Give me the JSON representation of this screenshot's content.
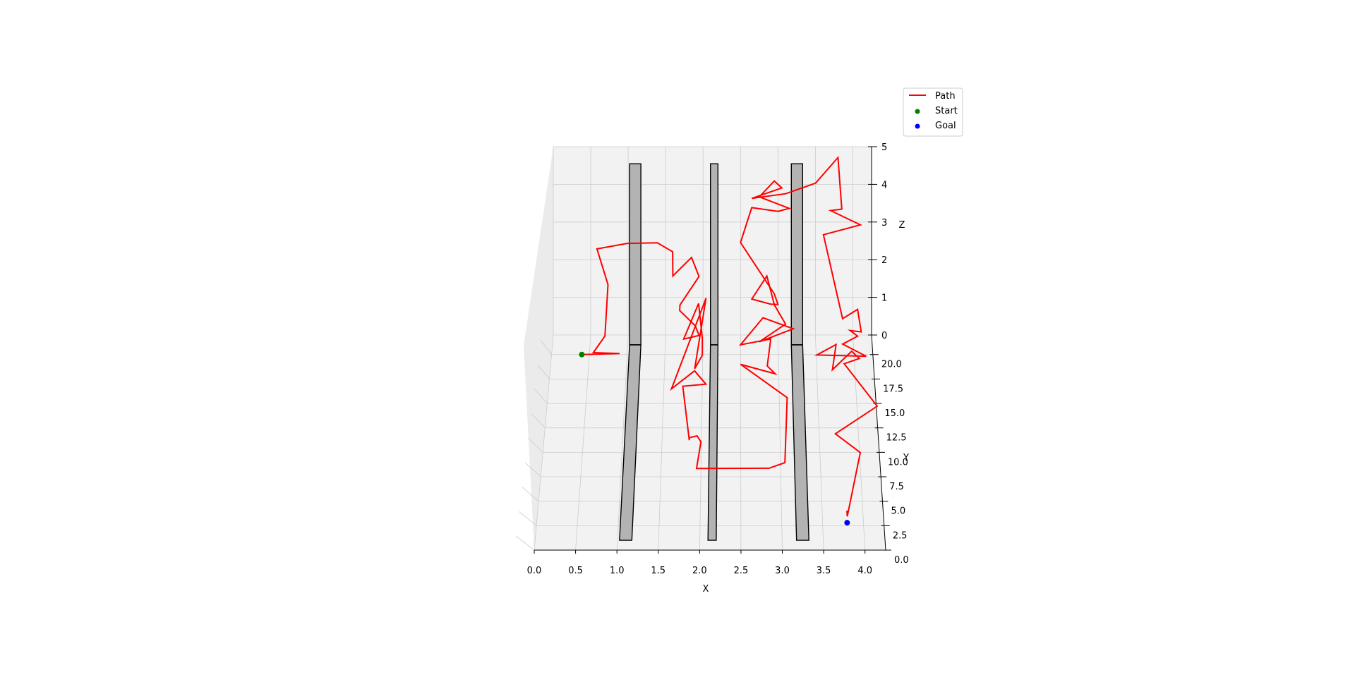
{
  "chart_data": {
    "type": "line",
    "projection": "3d",
    "xlabel": "X",
    "ylabel": "Y",
    "zlabel": "Z",
    "xlim": [
      0.0,
      4.25
    ],
    "ylim": [
      0.0,
      22.0
    ],
    "zlim": [
      0.0,
      5.0
    ],
    "grid": true,
    "legend_position": "top-right",
    "x_ticks": [
      "0.0",
      "0.5",
      "1.0",
      "1.5",
      "2.0",
      "2.5",
      "3.0",
      "3.5",
      "4.0"
    ],
    "y_ticks": [
      "0.0",
      "2.5",
      "5.0",
      "7.5",
      "10.0",
      "12.5",
      "15.0",
      "17.5",
      "20.0"
    ],
    "z_ticks": [
      "0",
      "1",
      "2",
      "3",
      "4",
      "5"
    ],
    "colors": {
      "path": "#ff0000",
      "start": "#008000",
      "goal": "#0000ff",
      "obstacle_fill": "#b3b3b3",
      "obstacle_edge": "#000000",
      "pane": "#f2f2f2",
      "grid": "#cccccc"
    },
    "legend": [
      {
        "label": "Path",
        "kind": "line",
        "color": "#ff0000"
      },
      {
        "label": "Start",
        "kind": "marker",
        "color": "#008000"
      },
      {
        "label": "Goal",
        "kind": "marker",
        "color": "#0000ff"
      }
    ],
    "series": [
      {
        "name": "Path",
        "points": [
          [
            0.4,
            20.0,
            0.0
          ],
          [
            0.9,
            20.1,
            0.0
          ],
          [
            0.55,
            20.2,
            0.0
          ],
          [
            0.7,
            20.8,
            0.3
          ],
          [
            0.75,
            19.5,
            2.2
          ],
          [
            0.6,
            20.1,
            3.0
          ],
          [
            1.0,
            20.0,
            3.2
          ],
          [
            1.4,
            19.8,
            3.3
          ],
          [
            1.6,
            20.4,
            2.8
          ],
          [
            1.6,
            21.0,
            1.9
          ],
          [
            1.85,
            20.5,
            2.6
          ],
          [
            1.95,
            20.4,
            2.1
          ],
          [
            1.7,
            19.5,
            1.6
          ],
          [
            1.7,
            18.5,
            1.8
          ],
          [
            1.9,
            20.1,
            0.8
          ],
          [
            1.95,
            20.5,
            0.4
          ],
          [
            1.75,
            19.5,
            0.6
          ],
          [
            1.95,
            17.8,
            2.3
          ],
          [
            2.0,
            17.5,
            1.3
          ],
          [
            2.0,
            17.4,
            0.8
          ],
          [
            1.9,
            17.6,
            0.3
          ],
          [
            2.05,
            16.0,
            3.3
          ],
          [
            1.6,
            16.5,
            0.0
          ],
          [
            1.9,
            16.8,
            0.5
          ],
          [
            2.05,
            15.8,
            0.4
          ],
          [
            1.75,
            15.6,
            0.4
          ],
          [
            1.85,
            10.0,
            0.6
          ],
          [
            1.85,
            9.5,
            1.0
          ],
          [
            1.95,
            9.0,
            1.4
          ],
          [
            2.0,
            8.2,
            1.6
          ],
          [
            1.95,
            6.0,
            1.6
          ],
          [
            2.85,
            5.9,
            1.7
          ],
          [
            3.05,
            7.0,
            1.2
          ],
          [
            3.1,
            14.5,
            0.4
          ],
          [
            2.5,
            19.0,
            0.0
          ],
          [
            2.95,
            16.8,
            0.4
          ],
          [
            2.85,
            18.5,
            0.1
          ],
          [
            2.9,
            20.5,
            0.3
          ],
          [
            2.5,
            21.0,
            0.0
          ],
          [
            2.8,
            21.5,
            0.6
          ],
          [
            3.2,
            20.8,
            0.5
          ],
          [
            2.75,
            21.3,
            0.0
          ],
          [
            3.1,
            21.6,
            0.4
          ],
          [
            2.95,
            21.0,
            1.1
          ],
          [
            2.85,
            21.0,
            1.9
          ],
          [
            2.65,
            21.2,
            1.2
          ],
          [
            2.9,
            21.4,
            1.0
          ],
          [
            3.0,
            21.7,
            0.9
          ],
          [
            2.95,
            22.0,
            1.1
          ],
          [
            2.5,
            21.6,
            2.6
          ],
          [
            2.65,
            21.7,
            3.5
          ],
          [
            3.0,
            21.7,
            3.4
          ],
          [
            3.15,
            21.9,
            3.4
          ],
          [
            2.75,
            21.2,
            4.0
          ],
          [
            2.95,
            21.5,
            4.3
          ],
          [
            3.05,
            21.3,
            4.2
          ],
          [
            2.65,
            21.1,
            4.0
          ],
          [
            3.1,
            21.4,
            4.0
          ],
          [
            3.5,
            21.6,
            4.2
          ],
          [
            3.8,
            21.8,
            4.8
          ],
          [
            3.85,
            21.6,
            3.5
          ],
          [
            3.7,
            21.5,
            3.5
          ],
          [
            4.1,
            21.8,
            3.0
          ],
          [
            3.6,
            20.6,
            3.2
          ],
          [
            3.85,
            20.1,
            1.0
          ],
          [
            4.05,
            20.3,
            1.2
          ],
          [
            4.1,
            20.5,
            0.5
          ],
          [
            3.95,
            20.3,
            0.6
          ],
          [
            4.05,
            20.1,
            0.5
          ],
          [
            3.85,
            20.0,
            0.3
          ],
          [
            4.15,
            18.5,
            0.4
          ],
          [
            3.5,
            18.3,
            0.5
          ],
          [
            3.75,
            17.8,
            1.0
          ],
          [
            3.7,
            17.5,
            0.3
          ],
          [
            3.95,
            17.2,
            1.0
          ],
          [
            4.05,
            17.1,
            0.8
          ],
          [
            3.85,
            16.9,
            0.7
          ],
          [
            4.25,
            13.2,
            0.6
          ],
          [
            3.7,
            10.8,
            0.5
          ],
          [
            4.0,
            8.5,
            0.8
          ],
          [
            3.8,
            2.5,
            1.0
          ],
          [
            3.8,
            3.2,
            0.8
          ]
        ]
      }
    ],
    "start": {
      "name": "Start",
      "x": 0.4,
      "y": 20.0,
      "z": 0.0
    },
    "goal": {
      "name": "Goal",
      "x": 3.8,
      "y": 2.8,
      "z": 0.0
    },
    "obstacles": [
      {
        "x_center": 1.1,
        "width": 0.15,
        "y_range": [
          1.0,
          21.0
        ],
        "height": 5.0
      },
      {
        "x_center": 2.15,
        "width": 0.1,
        "y_range": [
          1.0,
          21.0
        ],
        "height": 5.0
      },
      {
        "x_center": 3.25,
        "width": 0.15,
        "y_range": [
          1.0,
          21.0
        ],
        "height": 5.0
      }
    ]
  }
}
